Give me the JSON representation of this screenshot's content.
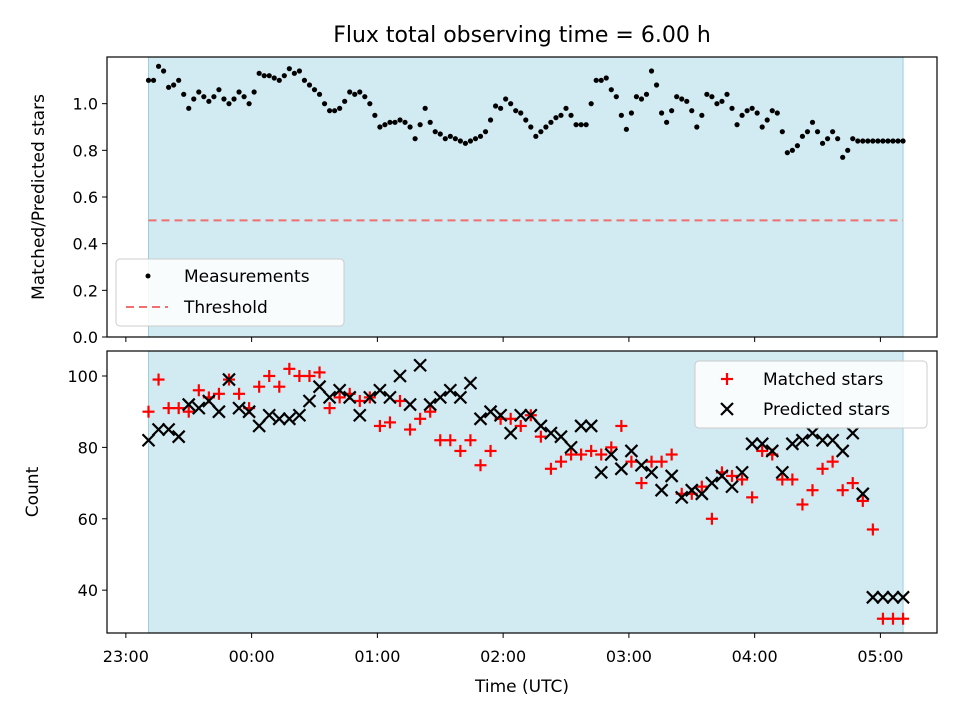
{
  "chart_data": [
    {
      "type": "scatter",
      "title": "Flux total observing time = 6.00 h",
      "xlabel": "",
      "ylabel": "Matched/Predicted stars",
      "ylim": [
        0,
        1.2
      ],
      "yticks": [
        "0.0",
        "0.2",
        "0.4",
        "0.6",
        "0.8",
        "1.0"
      ],
      "xlim_hours": [
        -1.15,
        5.45
      ],
      "observing_window_hours": [
        -0.82,
        5.18
      ],
      "threshold": 0.5,
      "legend_position": "lower-left",
      "legend": {
        "measurements": "Measurements",
        "threshold": "Threshold"
      },
      "series": [
        {
          "name": "Measurements",
          "x": [
            -0.82,
            -0.78,
            -0.74,
            -0.7,
            -0.66,
            -0.62,
            -0.58,
            -0.54,
            -0.5,
            -0.46,
            -0.42,
            -0.38,
            -0.34,
            -0.3,
            -0.26,
            -0.22,
            -0.18,
            -0.14,
            -0.1,
            -0.06,
            -0.02,
            0.02,
            0.06,
            0.1,
            0.14,
            0.18,
            0.22,
            0.26,
            0.3,
            0.34,
            0.38,
            0.42,
            0.46,
            0.5,
            0.54,
            0.58,
            0.62,
            0.66,
            0.7,
            0.74,
            0.78,
            0.82,
            0.86,
            0.9,
            0.94,
            0.98,
            1.02,
            1.06,
            1.1,
            1.14,
            1.18,
            1.22,
            1.26,
            1.3,
            1.34,
            1.38,
            1.42,
            1.46,
            1.5,
            1.54,
            1.58,
            1.62,
            1.66,
            1.7,
            1.74,
            1.78,
            1.82,
            1.86,
            1.9,
            1.94,
            1.98,
            2.02,
            2.06,
            2.1,
            2.14,
            2.18,
            2.22,
            2.26,
            2.3,
            2.34,
            2.38,
            2.42,
            2.46,
            2.5,
            2.54,
            2.58,
            2.62,
            2.66,
            2.7,
            2.74,
            2.78,
            2.82,
            2.86,
            2.9,
            2.94,
            2.98,
            3.02,
            3.06,
            3.1,
            3.14,
            3.18,
            3.22,
            3.26,
            3.3,
            3.34,
            3.38,
            3.42,
            3.46,
            3.5,
            3.54,
            3.58,
            3.62,
            3.66,
            3.7,
            3.74,
            3.78,
            3.82,
            3.86,
            3.9,
            3.94,
            3.98,
            4.02,
            4.06,
            4.1,
            4.14,
            4.18,
            4.22,
            4.26,
            4.3,
            4.34,
            4.38,
            4.42,
            4.46,
            4.5,
            4.54,
            4.58,
            4.62,
            4.66,
            4.7,
            4.74,
            4.78,
            4.82,
            4.86,
            4.9,
            4.94,
            4.98,
            5.02,
            5.06,
            5.1,
            5.14,
            5.18
          ],
          "y": [
            1.1,
            1.1,
            1.16,
            1.14,
            1.07,
            1.08,
            1.1,
            1.04,
            0.98,
            1.02,
            1.05,
            1.03,
            1.01,
            1.03,
            1.06,
            1.02,
            1.0,
            1.02,
            1.05,
            1.03,
            1.0,
            1.05,
            1.13,
            1.12,
            1.12,
            1.11,
            1.1,
            1.12,
            1.15,
            1.13,
            1.14,
            1.1,
            1.08,
            1.06,
            1.04,
            1.0,
            0.97,
            0.97,
            0.98,
            1.01,
            1.05,
            1.04,
            1.05,
            1.03,
            1.0,
            0.95,
            0.9,
            0.91,
            0.92,
            0.92,
            0.93,
            0.92,
            0.9,
            0.85,
            0.91,
            0.98,
            0.92,
            0.88,
            0.87,
            0.85,
            0.86,
            0.85,
            0.84,
            0.83,
            0.84,
            0.85,
            0.86,
            0.88,
            0.93,
            0.99,
            0.98,
            1.02,
            1.0,
            0.97,
            0.96,
            0.93,
            0.9,
            0.86,
            0.88,
            0.9,
            0.92,
            0.94,
            0.95,
            0.98,
            0.95,
            0.91,
            0.91,
            0.91,
            1.0,
            1.1,
            1.1,
            1.11,
            1.06,
            1.03,
            0.95,
            0.89,
            0.96,
            1.03,
            1.02,
            1.04,
            1.14,
            1.08,
            0.96,
            0.92,
            0.97,
            1.03,
            1.02,
            1.01,
            0.97,
            0.9,
            0.95,
            1.04,
            1.03,
            1.0,
            1.01,
            1.04,
            0.98,
            0.91,
            0.95,
            0.97,
            0.98,
            0.96,
            0.9,
            0.93,
            0.97,
            0.96,
            0.88,
            0.79,
            0.8,
            0.82,
            0.86,
            0.88,
            0.92,
            0.88,
            0.83,
            0.85,
            0.88,
            0.85,
            0.77,
            0.8,
            0.85,
            0.84,
            0.84,
            0.84,
            0.84,
            0.84,
            0.84,
            0.84,
            0.84,
            0.84,
            0.84
          ]
        }
      ]
    },
    {
      "type": "scatter",
      "title": "",
      "xlabel": "Time (UTC)",
      "ylabel": "Count",
      "ylim": [
        28,
        107
      ],
      "yticks": [
        "40",
        "60",
        "80",
        "100"
      ],
      "xticks": [
        "23:00",
        "00:00",
        "01:00",
        "02:00",
        "03:00",
        "04:00",
        "05:00"
      ],
      "legend_position": "upper-right",
      "legend": {
        "matched": "Matched stars",
        "predicted": "Predicted stars"
      },
      "series": [
        {
          "name": "Matched stars",
          "color": "#ff0000",
          "x": [
            -0.82,
            -0.74,
            -0.66,
            -0.58,
            -0.5,
            -0.42,
            -0.34,
            -0.26,
            -0.18,
            -0.1,
            -0.02,
            0.06,
            0.14,
            0.22,
            0.3,
            0.38,
            0.46,
            0.54,
            0.62,
            0.7,
            0.78,
            0.86,
            0.94,
            1.02,
            1.1,
            1.18,
            1.26,
            1.34,
            1.42,
            1.5,
            1.58,
            1.66,
            1.74,
            1.82,
            1.9,
            1.98,
            2.06,
            2.14,
            2.22,
            2.3,
            2.38,
            2.46,
            2.54,
            2.62,
            2.7,
            2.78,
            2.86,
            2.94,
            3.02,
            3.1,
            3.18,
            3.26,
            3.34,
            3.42,
            3.5,
            3.58,
            3.66,
            3.74,
            3.82,
            3.9,
            3.98,
            4.06,
            4.14,
            4.22,
            4.3,
            4.38,
            4.46,
            4.54,
            4.62,
            4.7,
            4.78,
            4.86,
            4.94,
            5.02,
            5.1,
            5.18
          ],
          "y": [
            90,
            99,
            91,
            91,
            90,
            96,
            94,
            95,
            99,
            95,
            91,
            97,
            100,
            97,
            102,
            100,
            100,
            101,
            91,
            94,
            95,
            93,
            94,
            86,
            87,
            93,
            85,
            88,
            90,
            82,
            82,
            79,
            82,
            75,
            79,
            88,
            88,
            86,
            89,
            83,
            74,
            76,
            78,
            78,
            79,
            78,
            80,
            86,
            76,
            70,
            76,
            76,
            78,
            67,
            67,
            69,
            60,
            73,
            72,
            71,
            66,
            79,
            78,
            71,
            71,
            64,
            68,
            74,
            76,
            68,
            70,
            65,
            57,
            32,
            32,
            32
          ]
        },
        {
          "name": "Predicted stars",
          "color": "#000000",
          "x": [
            -0.82,
            -0.74,
            -0.66,
            -0.58,
            -0.5,
            -0.42,
            -0.34,
            -0.26,
            -0.18,
            -0.1,
            -0.02,
            0.06,
            0.14,
            0.22,
            0.3,
            0.38,
            0.46,
            0.54,
            0.62,
            0.7,
            0.78,
            0.86,
            0.94,
            1.02,
            1.1,
            1.18,
            1.26,
            1.34,
            1.42,
            1.5,
            1.58,
            1.66,
            1.74,
            1.82,
            1.9,
            1.98,
            2.06,
            2.14,
            2.22,
            2.3,
            2.38,
            2.46,
            2.54,
            2.62,
            2.7,
            2.78,
            2.86,
            2.94,
            3.02,
            3.1,
            3.18,
            3.26,
            3.34,
            3.42,
            3.5,
            3.58,
            3.66,
            3.74,
            3.82,
            3.9,
            3.98,
            4.06,
            4.14,
            4.22,
            4.3,
            4.38,
            4.46,
            4.54,
            4.62,
            4.7,
            4.78,
            4.86,
            4.94,
            5.02,
            5.1,
            5.18
          ],
          "y": [
            82,
            85,
            85,
            83,
            92,
            91,
            93,
            90,
            99,
            91,
            90,
            86,
            89,
            88,
            88,
            89,
            93,
            97,
            94,
            96,
            94,
            89,
            94,
            96,
            94,
            100,
            92,
            103,
            92,
            94,
            96,
            94,
            98,
            88,
            90,
            89,
            84,
            89,
            89,
            86,
            84,
            83,
            80,
            86,
            86,
            73,
            78,
            74,
            79,
            75,
            73,
            68,
            72,
            66,
            68,
            67,
            70,
            72,
            69,
            73,
            81,
            81,
            79,
            73,
            81,
            82,
            84,
            82,
            82,
            79,
            84,
            67,
            38,
            38,
            38,
            38
          ]
        }
      ]
    }
  ]
}
